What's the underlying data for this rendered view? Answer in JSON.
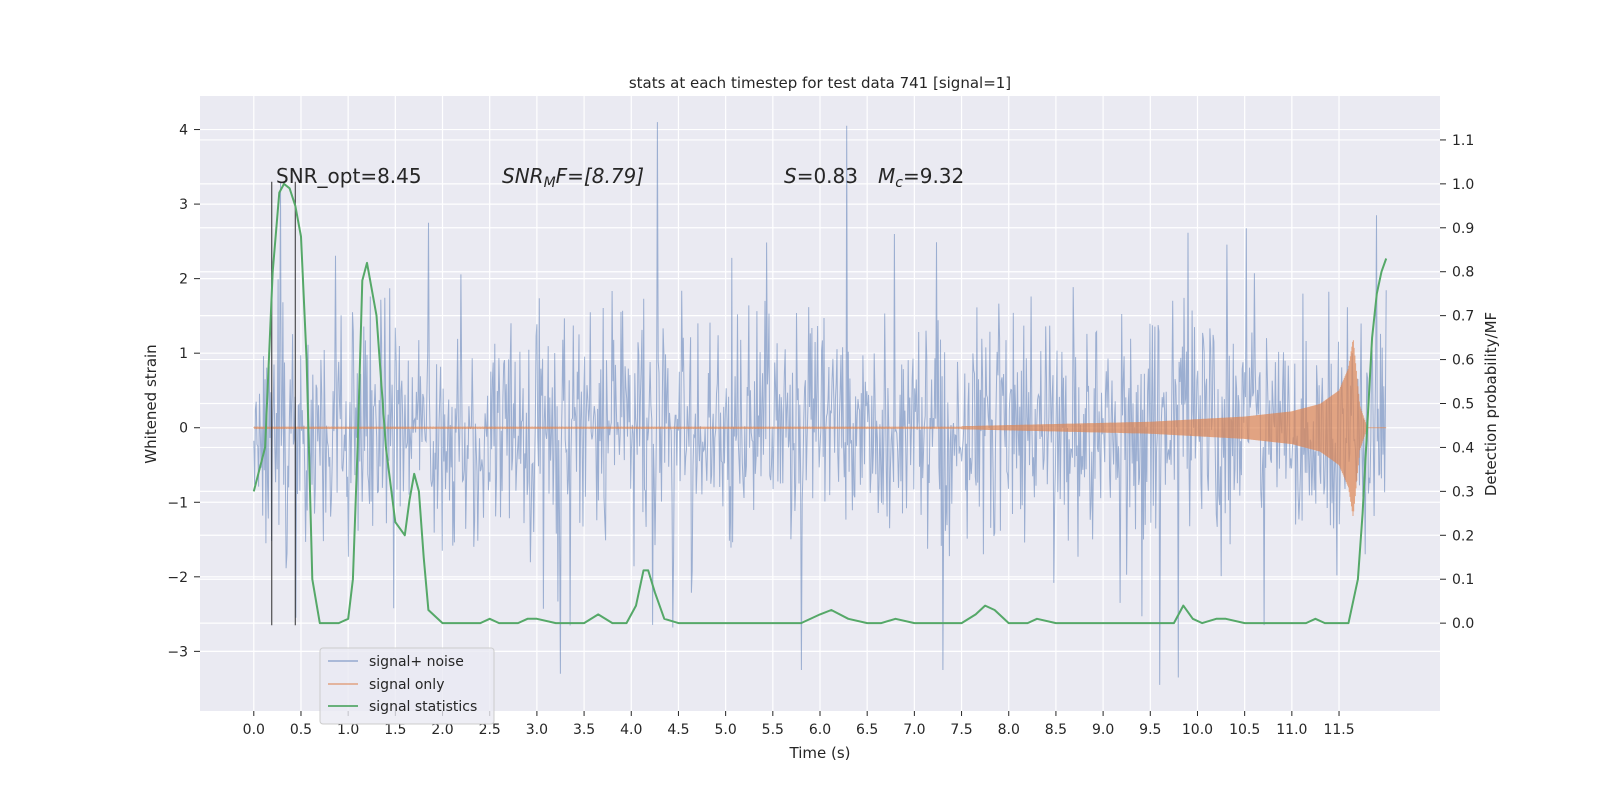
{
  "chart_data": {
    "type": "line",
    "title": "stats at each timestep for test data 741 [signal=1]",
    "xlabel": "Time (s)",
    "ylabel": "Whitened strain",
    "ylabel_right": "Detection probability/MF",
    "xlim": [
      -0.57,
      12.57
    ],
    "ylim": [
      -3.8,
      4.45
    ],
    "ylim_right": [
      -0.2,
      1.2
    ],
    "x_ticks": [
      0,
      0.5,
      1,
      1.5,
      2,
      2.5,
      3,
      3.5,
      4,
      4.5,
      5,
      5.5,
      6,
      6.5,
      7,
      7.5,
      8,
      8.5,
      9,
      9.5,
      10,
      10.5,
      11,
      11.5
    ],
    "x_tick_labels": [
      "0.0",
      "0.5",
      "1.0",
      "1.5",
      "2.0",
      "2.5",
      "3.0",
      "3.5",
      "4.0",
      "4.5",
      "5.0",
      "5.5",
      "6.0",
      "6.5",
      "7.0",
      "7.5",
      "8.0",
      "8.5",
      "9.0",
      "9.5",
      "10.0",
      "10.5",
      "11.0",
      "11.5"
    ],
    "y_ticks": [
      -3,
      -2,
      -1,
      0,
      1,
      2,
      3,
      4
    ],
    "y_tick_labels": [
      "−3",
      "−2",
      "−1",
      "0",
      "1",
      "2",
      "3",
      "4"
    ],
    "y_ticks_right": [
      0.0,
      0.1,
      0.2,
      0.3,
      0.4,
      0.5,
      0.6,
      0.7,
      0.8,
      0.9,
      1.0,
      1.1
    ],
    "y_tick_labels_right": [
      "0.0",
      "0.1",
      "0.2",
      "0.3",
      "0.4",
      "0.5",
      "0.6",
      "0.7",
      "0.8",
      "0.9",
      "1.0",
      "1.1"
    ],
    "grid": true,
    "legend_position": "lower-left",
    "legend": [
      "signal+ noise",
      "signal only",
      "signal statistics"
    ],
    "annotations": {
      "snr_opt": "SNR_opt=8.45",
      "snr_mf_sym": "SNR",
      "snr_mf_sub": "M",
      "snr_mf_rest": "F=[8.79]",
      "s_sym": "S",
      "s_val": "=0.83",
      "mc_sym": "M",
      "mc_sub": "c",
      "mc_val": "=9.32"
    },
    "vertical_markers": [
      0.19,
      0.44
    ],
    "series": [
      {
        "name": "signal+ noise",
        "color": "#4c72b0",
        "axis": "left",
        "description": "noise samples 0–12 s, bulk within about ±1.5, peaks to 4.1 at 4.28 s, minimum -3.45 at 9.6 s",
        "x_range": [
          0,
          12
        ],
        "highlights": [
          [
            0.28,
            3.3
          ],
          [
            0.45,
            -2.55
          ],
          [
            1.85,
            2.75
          ],
          [
            3.25,
            -3.3
          ],
          [
            4.28,
            4.1
          ],
          [
            5.8,
            -3.25
          ],
          [
            6.28,
            4.05
          ],
          [
            7.3,
            -3.25
          ],
          [
            9.6,
            -3.45
          ],
          [
            9.8,
            -3.35
          ],
          [
            11.9,
            2.85
          ]
        ]
      },
      {
        "name": "signal only",
        "color": "#dd8452",
        "axis": "left",
        "description": "chirp: near zero, amplitude growing from about 7.5 s, peak about 1.25 at 11.65 s, ring-down to 0 by 11.8 s",
        "envelope": [
          [
            7.5,
            0.02
          ],
          [
            8.5,
            0.05
          ],
          [
            9.5,
            0.08
          ],
          [
            10.5,
            0.15
          ],
          [
            11.0,
            0.22
          ],
          [
            11.3,
            0.32
          ],
          [
            11.5,
            0.5
          ],
          [
            11.6,
            0.8
          ],
          [
            11.65,
            1.2
          ],
          [
            11.72,
            0.3
          ],
          [
            11.8,
            0.0
          ],
          [
            12.0,
            0.0
          ]
        ]
      },
      {
        "name": "signal statistics",
        "color": "#55a868",
        "axis": "right",
        "x": [
          0.0,
          0.12,
          0.2,
          0.27,
          0.32,
          0.38,
          0.44,
          0.5,
          0.56,
          0.62,
          0.7,
          0.8,
          0.9,
          1.0,
          1.05,
          1.1,
          1.15,
          1.2,
          1.3,
          1.4,
          1.5,
          1.6,
          1.65,
          1.7,
          1.75,
          1.8,
          1.85,
          2.0,
          2.2,
          2.4,
          2.5,
          2.6,
          2.8,
          2.9,
          3.0,
          3.2,
          3.5,
          3.65,
          3.8,
          3.95,
          4.05,
          4.13,
          4.18,
          4.25,
          4.35,
          4.5,
          5.0,
          5.5,
          5.8,
          6.0,
          6.12,
          6.3,
          6.5,
          6.65,
          6.8,
          7.0,
          7.2,
          7.5,
          7.65,
          7.75,
          7.85,
          8.0,
          8.2,
          8.3,
          8.5,
          9.0,
          9.5,
          9.75,
          9.85,
          9.95,
          10.05,
          10.2,
          10.3,
          10.5,
          11.0,
          11.15,
          11.25,
          11.35,
          11.5,
          11.6,
          11.7,
          11.75,
          11.8,
          11.85,
          11.9,
          11.95,
          12.0
        ],
        "y": [
          0.3,
          0.4,
          0.8,
          0.98,
          1.0,
          0.99,
          0.95,
          0.88,
          0.6,
          0.1,
          0.0,
          0.0,
          0.0,
          0.01,
          0.1,
          0.4,
          0.78,
          0.82,
          0.7,
          0.4,
          0.23,
          0.2,
          0.28,
          0.34,
          0.3,
          0.15,
          0.03,
          0.0,
          0.0,
          0.0,
          0.01,
          0.0,
          0.0,
          0.01,
          0.01,
          0.0,
          0.0,
          0.02,
          0.0,
          0.0,
          0.04,
          0.12,
          0.12,
          0.07,
          0.01,
          0.0,
          0.0,
          0.0,
          0.0,
          0.02,
          0.03,
          0.01,
          0.0,
          0.0,
          0.01,
          0.0,
          0.0,
          0.0,
          0.02,
          0.04,
          0.03,
          0.0,
          0.0,
          0.01,
          0.0,
          0.0,
          0.0,
          0.0,
          0.04,
          0.01,
          0.0,
          0.01,
          0.01,
          0.0,
          0.0,
          0.0,
          0.01,
          0.0,
          0.0,
          0.0,
          0.1,
          0.25,
          0.45,
          0.65,
          0.75,
          0.8,
          0.83
        ]
      }
    ]
  }
}
